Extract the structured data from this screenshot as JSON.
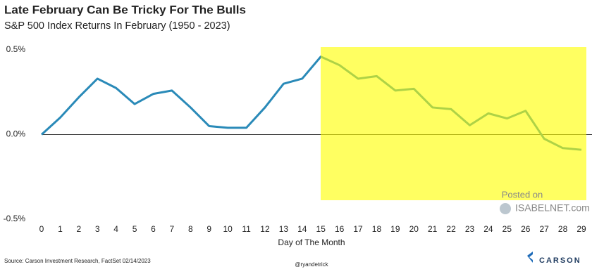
{
  "chart_data": {
    "type": "line",
    "title": "Late February Can Be Tricky For The Bulls",
    "subtitle": "S&P 500 Index Returns In February (1950 - 2023)",
    "x_label": "Day of The Month",
    "source": "Source: Carson Investment Research, FactSet 02/14/2023",
    "credit": "@ryandetrick",
    "brand": "CARSON",
    "watermark": [
      "Posted on",
      "ISABELNET.com"
    ],
    "x": [
      0,
      1,
      2,
      3,
      4,
      5,
      6,
      7,
      8,
      9,
      10,
      11,
      12,
      13,
      14,
      15,
      16,
      17,
      18,
      19,
      20,
      21,
      22,
      23,
      24,
      25,
      26,
      27,
      28,
      29
    ],
    "series": [
      {
        "color": "#2a8ab8",
        "values": [
          0.0,
          0.1,
          0.22,
          0.33,
          0.275,
          0.18,
          0.24,
          0.26,
          0.16,
          0.05,
          0.04,
          0.04,
          0.16,
          0.3,
          0.33,
          0.46,
          0.41,
          0.33,
          0.345,
          0.26,
          0.27,
          0.16,
          0.15,
          0.055,
          0.125,
          0.095,
          0.14,
          -0.025,
          -0.08,
          -0.09
        ]
      }
    ],
    "xlim": [
      0,
      29
    ],
    "xticks": [
      0,
      1,
      2,
      3,
      4,
      5,
      6,
      7,
      8,
      9,
      10,
      11,
      12,
      13,
      14,
      15,
      16,
      17,
      18,
      19,
      20,
      21,
      22,
      23,
      24,
      25,
      26,
      27,
      28,
      29
    ],
    "ylim": [
      -0.5,
      0.5
    ],
    "yticks": [
      {
        "value": -0.5,
        "label": "-0.5%"
      },
      {
        "value": 0.0,
        "label": "0.0%"
      },
      {
        "value": 0.5,
        "label": "0.5%"
      }
    ],
    "zero_line": true
  }
}
